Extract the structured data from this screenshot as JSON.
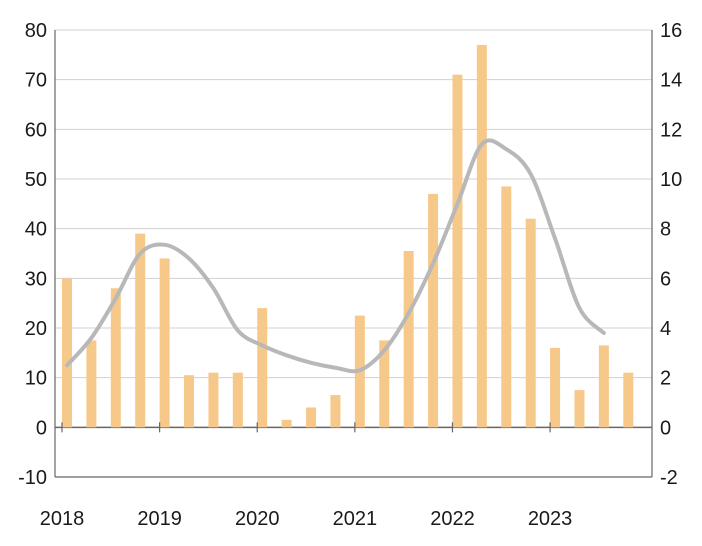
{
  "chart_data": {
    "type": "bar",
    "title": "",
    "xlabel": "",
    "ylabel": "",
    "ylim": [
      -10,
      80
    ],
    "y_ticks": [
      -10,
      0,
      10,
      20,
      30,
      40,
      50,
      60,
      70,
      80
    ],
    "y2lim": [
      -2,
      16
    ],
    "y2_ticks": [
      -2,
      0,
      2,
      4,
      6,
      8,
      10,
      12,
      14,
      16
    ],
    "xlim": [
      2018,
      2023.87
    ],
    "x_ticks": [
      2018,
      2019,
      2020,
      2021,
      2022,
      2023
    ],
    "x_tick_labels": [
      "2018",
      "2019",
      "2020",
      "2021",
      "2022",
      "2023"
    ],
    "grid": true,
    "legend": "none",
    "colors": {
      "bars": "#f6c98a",
      "line": "#b8b8b8",
      "grid": "#d0d0d0",
      "axis": "#666666"
    },
    "bars": {
      "axis": "left",
      "x": [
        2018.0,
        2018.25,
        2018.5,
        2018.75,
        2019.0,
        2019.25,
        2019.5,
        2019.75,
        2020.0,
        2020.25,
        2020.5,
        2020.75,
        2021.0,
        2021.25,
        2021.5,
        2021.75,
        2022.0,
        2022.25,
        2022.5,
        2022.75,
        2023.0,
        2023.25,
        2023.5,
        2023.75
      ],
      "values": [
        30,
        17.5,
        28,
        39,
        34,
        10.5,
        11,
        11,
        24,
        1.5,
        4,
        6.5,
        22.5,
        17.5,
        35.5,
        47,
        71,
        77,
        48.5,
        42,
        16,
        7.5,
        16.5,
        11
      ]
    },
    "line": {
      "axis": "right",
      "x": [
        2018.0,
        2018.25,
        2018.5,
        2018.75,
        2019.0,
        2019.25,
        2019.5,
        2019.75,
        2020.0,
        2020.25,
        2020.5,
        2020.75,
        2021.0,
        2021.25,
        2021.5,
        2021.75,
        2022.0,
        2022.25,
        2022.5,
        2022.75,
        2023.0,
        2023.25,
        2023.5
      ],
      "values": [
        2.5,
        3.6,
        5.2,
        7.0,
        7.35,
        6.8,
        5.6,
        3.9,
        3.3,
        2.9,
        2.6,
        2.4,
        2.3,
        3.1,
        4.6,
        6.6,
        9.0,
        11.4,
        11.2,
        10.2,
        7.6,
        4.8,
        3.8
      ]
    }
  }
}
